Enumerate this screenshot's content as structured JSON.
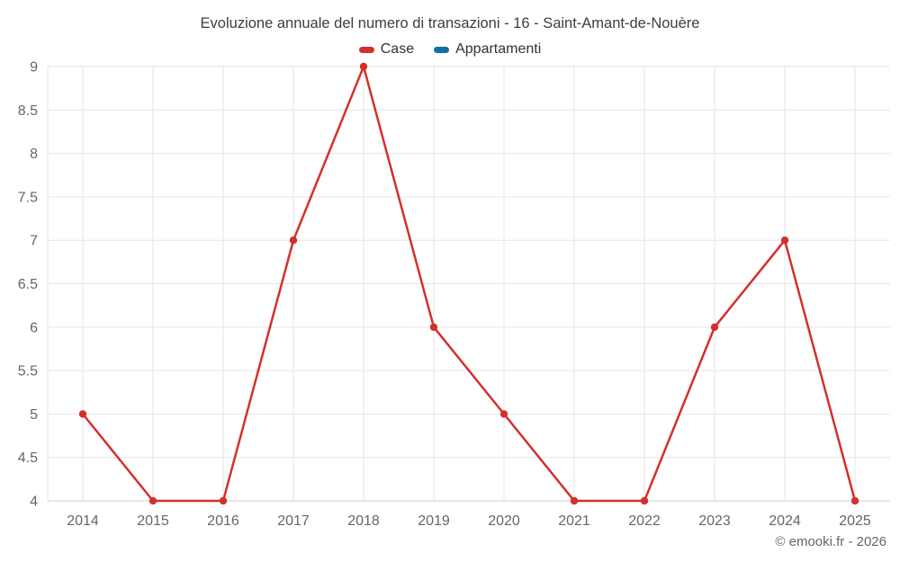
{
  "credit": {
    "text": "© emooki.fr - 2026"
  },
  "colors": {
    "background": "#ffffff",
    "grid": "#e6e6e6",
    "axis_line": "#d0d0d0",
    "axis_text": "#666666",
    "title_text": "#3e3e3e",
    "legend_text": "#333333",
    "case_red": "#d3302c",
    "appartamenti_blue": "#1170a2"
  },
  "chart_data": {
    "type": "line",
    "title": "Evoluzione annuale del numero di transazioni - 16 - Saint-Amant-de-Nouère",
    "categories": [
      "2014",
      "2015",
      "2016",
      "2017",
      "2018",
      "2019",
      "2020",
      "2021",
      "2022",
      "2023",
      "2024",
      "2025"
    ],
    "series": [
      {
        "name": "Case",
        "color": "#d3302c",
        "values": [
          5,
          4,
          4,
          7,
          9,
          6,
          5,
          4,
          4,
          6,
          7,
          4
        ]
      },
      {
        "name": "Appartamenti",
        "color": "#1170a2",
        "values": []
      }
    ],
    "xlabel": "",
    "ylabel": "",
    "ylim": [
      4,
      9
    ],
    "ytick_step": 0.5,
    "yticks": [
      4,
      4.5,
      5,
      5.5,
      6,
      6.5,
      7,
      7.5,
      8,
      8.5,
      9
    ],
    "grid": true,
    "legend_position": "top",
    "marker": "circle"
  }
}
